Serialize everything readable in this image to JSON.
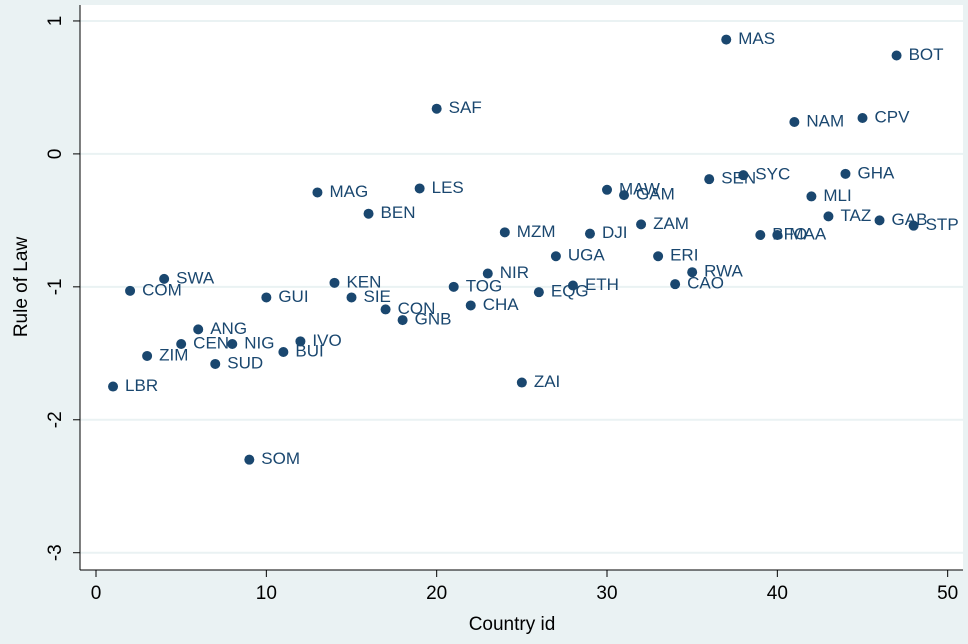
{
  "chart_data": {
    "type": "scatter",
    "xlabel": "Country id",
    "ylabel": "Rule of Law",
    "x": [
      1,
      2,
      3,
      4,
      5,
      6,
      7,
      8,
      9,
      10,
      11,
      12,
      13,
      14,
      15,
      16,
      17,
      18,
      19,
      20,
      21,
      22,
      23,
      24,
      25,
      26,
      27,
      28,
      29,
      30,
      31,
      32,
      33,
      34,
      35,
      36,
      37,
      38,
      39,
      40,
      41,
      42,
      43,
      44,
      45,
      46,
      47,
      48
    ],
    "series": [
      {
        "color": "#1a476f",
        "values": [
          -1.75,
          -1.03,
          -1.52,
          -0.94,
          -1.43,
          -1.32,
          -1.58,
          -1.43,
          -2.3,
          -1.08,
          -1.49,
          -1.41,
          -0.29,
          -0.97,
          -1.08,
          -0.45,
          -1.17,
          -1.25,
          -0.26,
          0.34,
          -1.0,
          -1.14,
          -0.9,
          -0.59,
          -1.72,
          -1.04,
          -0.77,
          -0.99,
          -0.6,
          -0.27,
          -0.31,
          -0.53,
          -0.77,
          -0.98,
          -0.89,
          -0.19,
          0.86,
          -0.16,
          -0.61,
          -0.61,
          0.24,
          -0.32,
          -0.47,
          -0.15,
          0.27,
          -0.5,
          0.74,
          -0.54
        ],
        "point_labels": [
          "LBR",
          "COM",
          "ZIM",
          "SWA",
          "CEN",
          "ANG",
          "SUD",
          "NIG",
          "SOM",
          "GUI",
          "BUI",
          "IVO",
          "MAG",
          "KEN",
          "SIE",
          "BEN",
          "CON",
          "GNB",
          "LES",
          "SAF",
          "TOG",
          "CHA",
          "NIR",
          "MZM",
          "ZAI",
          "EQG",
          "UGA",
          "ETH",
          "DJI",
          "MAW",
          "GAM",
          "ZAM",
          "ERI",
          "CAO",
          "RWA",
          "SEN",
          "MAS",
          "SYC",
          "BFO",
          "MAA",
          "NAM",
          "MLI",
          "TAZ",
          "GHA",
          "CPV",
          "GAB",
          "BOT",
          "STP"
        ]
      }
    ],
    "xlim": [
      -0.94,
      50.9
    ],
    "ylim": [
      -3.13,
      1.12
    ],
    "xticks": [
      0,
      10,
      20,
      30,
      40,
      50
    ],
    "yticks": [
      -3,
      -2,
      -1,
      0,
      1
    ],
    "grid": true
  }
}
